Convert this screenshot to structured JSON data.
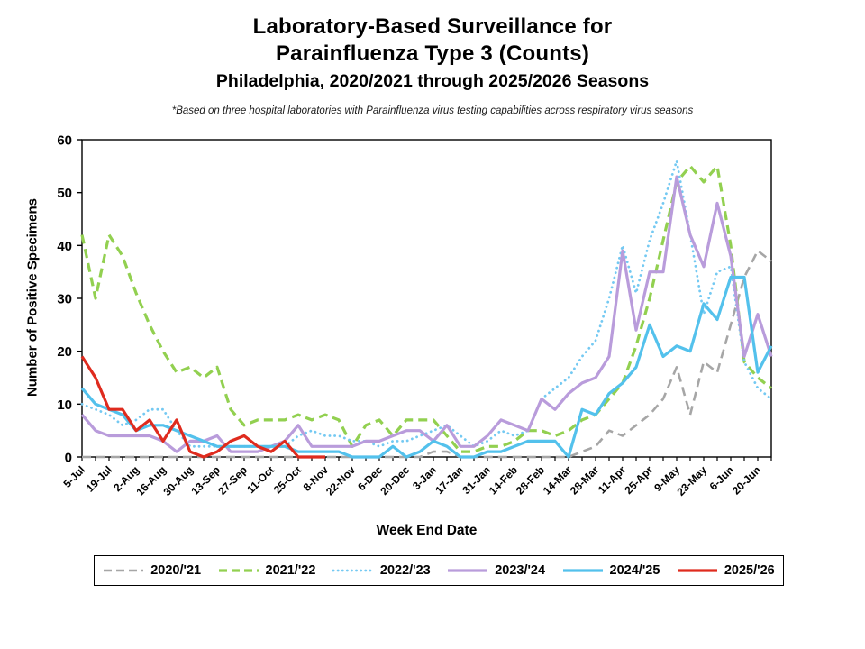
{
  "title": {
    "line1": "Laboratory-Based Surveillance for",
    "line2": "Parainfluenza Type 3 (Counts)",
    "line3": "Philadelphia, 2020/2021 through 2025/2026 Seasons"
  },
  "footnote": "*Based on three hospital laboratories with Parainfluenza virus testing capabilities across respiratory virus seasons",
  "chart_data": {
    "type": "line",
    "xlabel": "Week End Date",
    "ylabel": "Number of Positive Specimens",
    "ylim": [
      0,
      60
    ],
    "y_ticks": [
      0,
      10,
      20,
      30,
      40,
      50,
      60
    ],
    "weeks_total": 52,
    "x_label_every": 2,
    "x_tick_labels": [
      "5-Jul",
      "19-Jul",
      "2-Aug",
      "16-Aug",
      "30-Aug",
      "13-Sep",
      "27-Sep",
      "11-Oct",
      "25-Oct",
      "8-Nov",
      "22-Nov",
      "6-Dec",
      "20-Dec",
      "3-Jan",
      "17-Jan",
      "31-Jan",
      "14-Feb",
      "28-Feb",
      "14-Mar",
      "28-Mar",
      "11-Apr",
      "25-Apr",
      "9-May",
      "23-May",
      "6-Jun",
      "20-Jun"
    ],
    "grid": false,
    "legend_position": "bottom",
    "axis_color": "#000000",
    "series": [
      {
        "name": "2020/'21",
        "color": "#A6A6A6",
        "style": "dashed",
        "width": 2.6,
        "values": [
          0,
          0,
          0,
          0,
          0,
          0,
          0,
          0,
          0,
          0,
          0,
          0,
          0,
          0,
          0,
          0,
          0,
          0,
          0,
          0,
          0,
          0,
          0,
          0,
          0,
          0,
          1,
          1,
          0,
          0,
          0,
          0,
          0,
          0,
          0,
          0,
          0,
          1,
          2,
          5,
          4,
          6,
          8,
          11,
          17,
          8,
          18,
          16,
          25,
          34,
          39,
          37
        ]
      },
      {
        "name": "2021/'22",
        "color": "#92D050",
        "style": "dashed",
        "width": 3.2,
        "values": [
          42,
          30,
          42,
          38,
          31,
          25,
          20,
          16,
          17,
          15,
          17,
          9,
          6,
          7,
          7,
          7,
          8,
          7,
          8,
          7,
          2,
          6,
          7,
          4,
          7,
          7,
          7,
          4,
          1,
          1,
          2,
          2,
          3,
          5,
          5,
          4,
          5,
          7,
          8,
          11,
          14,
          21,
          30,
          41,
          52,
          55,
          52,
          55,
          40,
          18,
          15,
          13
        ]
      },
      {
        "name": "2022/'23",
        "color": "#74C9F2",
        "style": "dotted",
        "width": 2.8,
        "values": [
          10,
          9,
          8,
          6,
          7,
          9,
          9,
          5,
          2,
          2,
          2,
          2,
          2,
          2,
          2,
          2,
          4,
          5,
          4,
          4,
          3,
          3,
          2,
          3,
          3,
          4,
          5,
          6,
          4,
          2,
          3,
          5,
          4,
          5,
          11,
          13,
          15,
          19,
          22,
          30,
          40,
          31,
          41,
          48,
          56,
          42,
          27,
          35,
          36,
          18,
          13,
          11
        ]
      },
      {
        "name": "2023/'24",
        "color": "#B99CDB",
        "style": "solid",
        "width": 3.2,
        "values": [
          8,
          5,
          4,
          4,
          4,
          4,
          3,
          1,
          3,
          3,
          4,
          1,
          1,
          1,
          2,
          3,
          6,
          2,
          2,
          2,
          2,
          3,
          3,
          4,
          5,
          5,
          3,
          6,
          2,
          2,
          4,
          7,
          6,
          5,
          11,
          9,
          12,
          14,
          15,
          19,
          39,
          24,
          35,
          35,
          53,
          42,
          36,
          48,
          38,
          19,
          27,
          19
        ]
      },
      {
        "name": "2024/'25",
        "color": "#53C1EC",
        "style": "solid",
        "width": 3.2,
        "values": [
          13,
          10,
          9,
          8,
          5,
          6,
          6,
          5,
          4,
          3,
          2,
          2,
          2,
          2,
          2,
          2,
          1,
          1,
          1,
          1,
          0,
          0,
          0,
          2,
          0,
          1,
          3,
          2,
          0,
          0,
          1,
          1,
          2,
          3,
          3,
          3,
          0,
          9,
          8,
          12,
          14,
          17,
          25,
          19,
          21,
          20,
          29,
          26,
          34,
          34,
          16,
          21
        ]
      },
      {
        "name": "2025/'26",
        "color": "#DF2B1E",
        "style": "solid",
        "width": 3.2,
        "values": [
          19,
          15,
          9,
          9,
          5,
          7,
          3,
          7,
          1,
          0,
          1,
          3,
          4,
          2,
          1,
          3,
          0,
          0,
          0
        ]
      }
    ]
  }
}
